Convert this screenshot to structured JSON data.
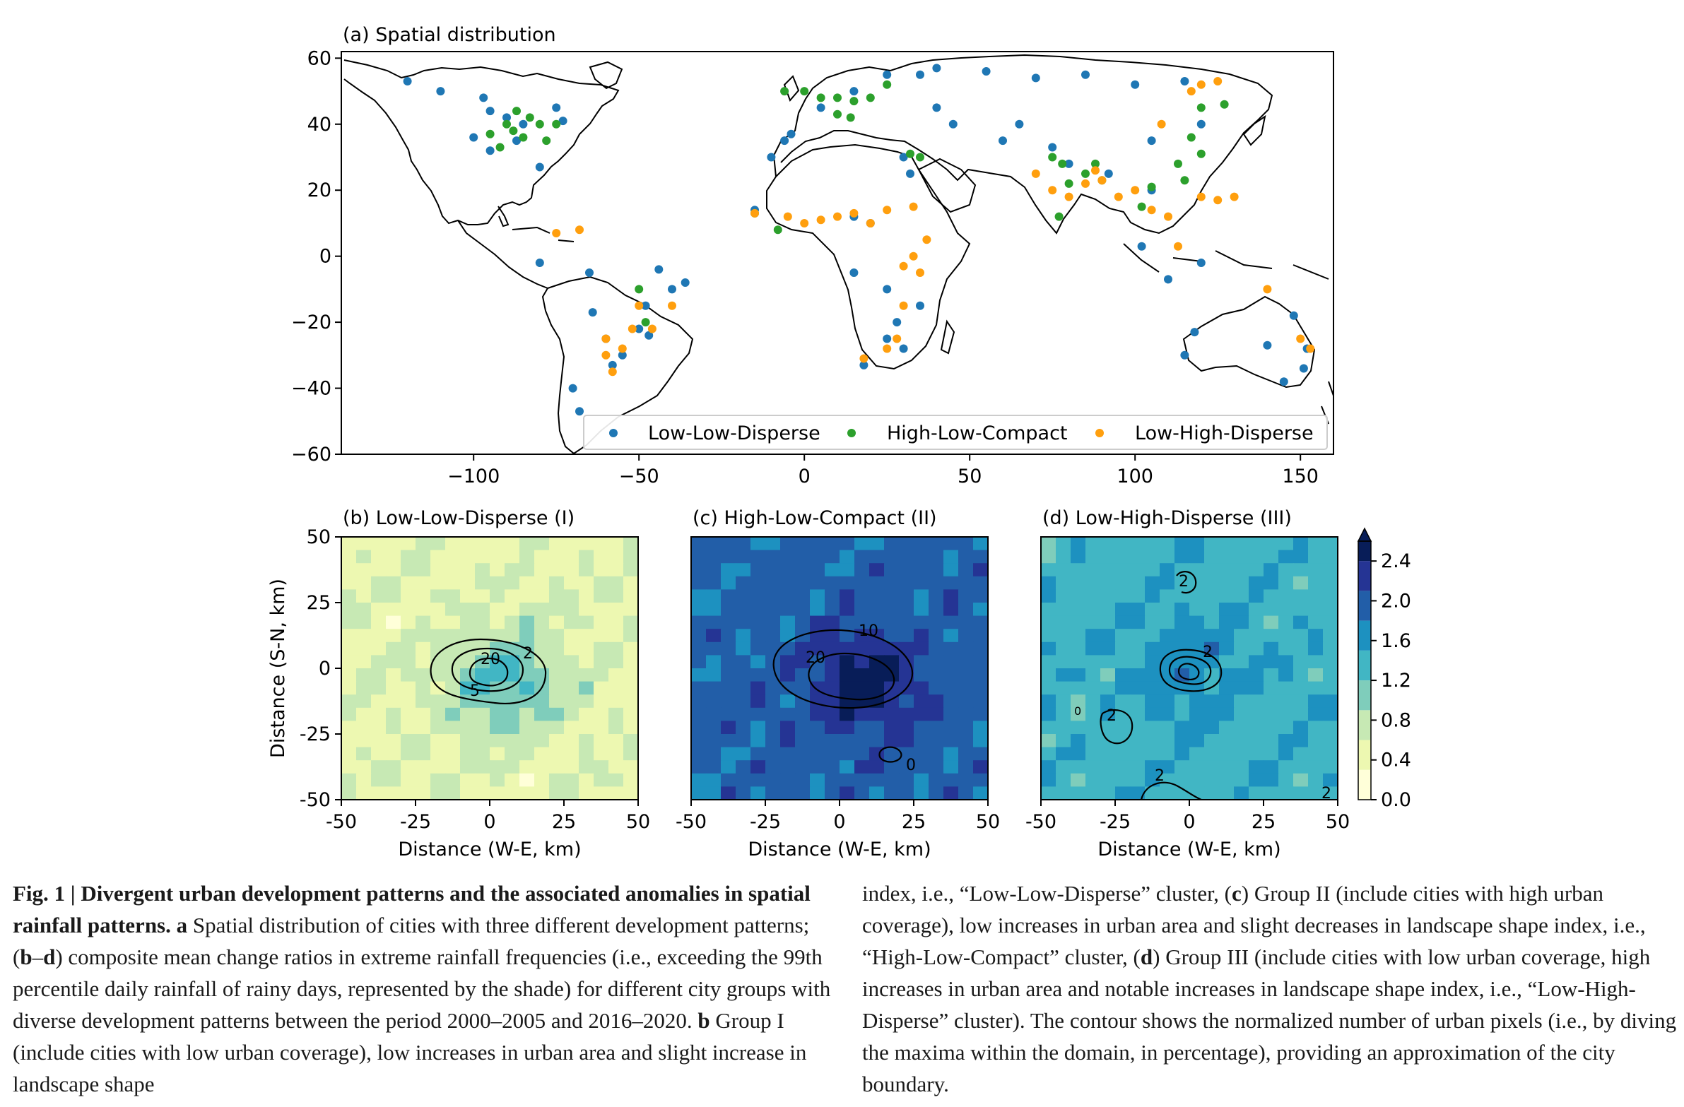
{
  "panels": {
    "a": {
      "title": "(a) Spatial distribution"
    },
    "b": {
      "title": "(b) Low-Low-Disperse (I)"
    },
    "c": {
      "title": "(c) High-Low-Compact (II)"
    },
    "d": {
      "title": "(d) Low-High-Disperse (III)"
    }
  },
  "map_axes": {
    "xticks": [
      "−100",
      "−50",
      "0",
      "50",
      "100",
      "150"
    ],
    "yticks": [
      "60",
      "40",
      "20",
      "0",
      "−20",
      "−40",
      "−60"
    ]
  },
  "legend": [
    {
      "label": "Low-Low-Disperse",
      "color": "#1f77b4"
    },
    {
      "label": "High-Low-Compact",
      "color": "#2ca02c"
    },
    {
      "label": "Low-High-Disperse",
      "color": "#ff9f0e"
    }
  ],
  "small_axes": {
    "xticks": [
      "-50",
      "-25",
      "0",
      "25",
      "50"
    ],
    "yticks": [
      "50",
      "25",
      "0",
      "-25",
      "-50"
    ],
    "xlabel": "Distance (W-E, km)",
    "ylabel": "Distance (S-N, km)"
  },
  "colorbar": {
    "ticks": [
      "2.4",
      "2.0",
      "1.6",
      "1.2",
      "0.8",
      "0.4",
      "0.0"
    ],
    "colors": [
      "#ffffd9",
      "#edf8b1",
      "#c7e9b4",
      "#7fcdbb",
      "#41b6c4",
      "#1d91c0",
      "#225ea8",
      "#253494",
      "#081d58"
    ]
  },
  "contours": {
    "b": [
      "2",
      "20",
      "5"
    ],
    "c": [
      "10",
      "20",
      "0"
    ],
    "d": [
      "2",
      "2",
      "2",
      "2",
      "0",
      "2"
    ]
  },
  "chart_data": [
    {
      "type": "scatter",
      "title": "(a) Spatial distribution",
      "xlim": [
        -140,
        160
      ],
      "ylim": [
        -60,
        62
      ],
      "legend_position": "lower-right",
      "series": [
        {
          "name": "Low-Low-Disperse",
          "color": "#1f77b4",
          "points": [
            [
              -120,
              53
            ],
            [
              -110,
              50
            ],
            [
              -97,
              48
            ],
            [
              -95,
              44
            ],
            [
              -90,
              42
            ],
            [
              -85,
              40
            ],
            [
              -100,
              36
            ],
            [
              -95,
              32
            ],
            [
              -80,
              27
            ],
            [
              -75,
              45
            ],
            [
              -73,
              41
            ],
            [
              -87,
              35
            ],
            [
              -64,
              -17
            ],
            [
              -60,
              -25
            ],
            [
              -58,
              -33
            ],
            [
              -55,
              -30
            ],
            [
              -48,
              -15
            ],
            [
              -44,
              -4
            ],
            [
              -40,
              -10
            ],
            [
              -36,
              -8
            ],
            [
              -70,
              -40
            ],
            [
              -68,
              -47
            ],
            [
              -50,
              -22
            ],
            [
              -47,
              -24
            ],
            [
              -65,
              -5
            ],
            [
              -80,
              -2
            ],
            [
              -4,
              37
            ],
            [
              5,
              45
            ],
            [
              15,
              50
            ],
            [
              25,
              55
            ],
            [
              35,
              55
            ],
            [
              40,
              57
            ],
            [
              55,
              56
            ],
            [
              70,
              54
            ],
            [
              85,
              55
            ],
            [
              100,
              52
            ],
            [
              115,
              53
            ],
            [
              40,
              45
            ],
            [
              45,
              40
            ],
            [
              30,
              30
            ],
            [
              32,
              25
            ],
            [
              20,
              10
            ],
            [
              15,
              12
            ],
            [
              25,
              -10
            ],
            [
              28,
              -20
            ],
            [
              25,
              -25
            ],
            [
              30,
              -28
            ],
            [
              35,
              -15
            ],
            [
              15,
              -5
            ],
            [
              -10,
              30
            ],
            [
              -6,
              35
            ],
            [
              -15,
              14
            ],
            [
              18,
              -33
            ],
            [
              60,
              35
            ],
            [
              65,
              40
            ],
            [
              75,
              33
            ],
            [
              80,
              28
            ],
            [
              92,
              25
            ],
            [
              105,
              20
            ],
            [
              105,
              35
            ],
            [
              120,
              40
            ],
            [
              115,
              -30
            ],
            [
              118,
              -23
            ],
            [
              140,
              -27
            ],
            [
              145,
              -38
            ],
            [
              151,
              -34
            ],
            [
              152,
              -28
            ],
            [
              148,
              -18
            ],
            [
              120,
              -2
            ],
            [
              110,
              -7
            ],
            [
              102,
              3
            ]
          ]
        },
        {
          "name": "High-Low-Compact",
          "color": "#2ca02c",
          "points": [
            [
              -90,
              40
            ],
            [
              -88,
              38
            ],
            [
              -85,
              36
            ],
            [
              -80,
              40
            ],
            [
              -78,
              35
            ],
            [
              -83,
              42
            ],
            [
              -95,
              37
            ],
            [
              -87,
              44
            ],
            [
              -75,
              40
            ],
            [
              -92,
              33
            ],
            [
              -6,
              50
            ],
            [
              0,
              50
            ],
            [
              5,
              48
            ],
            [
              10,
              48
            ],
            [
              15,
              47
            ],
            [
              20,
              48
            ],
            [
              25,
              52
            ],
            [
              10,
              43
            ],
            [
              14,
              42
            ],
            [
              32,
              31
            ],
            [
              35,
              30
            ],
            [
              -15,
              13
            ],
            [
              -8,
              8
            ],
            [
              75,
              30
            ],
            [
              78,
              28
            ],
            [
              80,
              22
            ],
            [
              85,
              25
            ],
            [
              90,
              23
            ],
            [
              88,
              28
            ],
            [
              77,
              12
            ],
            [
              102,
              15
            ],
            [
              105,
              21
            ],
            [
              115,
              23
            ],
            [
              113,
              28
            ],
            [
              117,
              36
            ],
            [
              120,
              31
            ],
            [
              127,
              46
            ],
            [
              120,
              45
            ],
            [
              -48,
              -20
            ],
            [
              -50,
              -10
            ]
          ]
        },
        {
          "name": "Low-High-Disperse",
          "color": "#ff9f0e",
          "points": [
            [
              -75,
              7
            ],
            [
              -68,
              8
            ],
            [
              -60,
              -25
            ],
            [
              -55,
              -28
            ],
            [
              -52,
              -22
            ],
            [
              -60,
              -30
            ],
            [
              -58,
              -35
            ],
            [
              -50,
              -15
            ],
            [
              -40,
              -15
            ],
            [
              -46,
              -22
            ],
            [
              -15,
              13
            ],
            [
              -5,
              12
            ],
            [
              0,
              10
            ],
            [
              5,
              11
            ],
            [
              10,
              12
            ],
            [
              15,
              13
            ],
            [
              20,
              10
            ],
            [
              25,
              14
            ],
            [
              33,
              15
            ],
            [
              30,
              -3
            ],
            [
              35,
              -5
            ],
            [
              33,
              0
            ],
            [
              37,
              5
            ],
            [
              30,
              -15
            ],
            [
              28,
              -25
            ],
            [
              25,
              -28
            ],
            [
              18,
              -31
            ],
            [
              70,
              25
            ],
            [
              75,
              20
            ],
            [
              80,
              18
            ],
            [
              85,
              22
            ],
            [
              90,
              23
            ],
            [
              88,
              26
            ],
            [
              95,
              18
            ],
            [
              100,
              20
            ],
            [
              105,
              14
            ],
            [
              110,
              12
            ],
            [
              113,
              3
            ],
            [
              120,
              18
            ],
            [
              125,
              17
            ],
            [
              130,
              18
            ],
            [
              140,
              -10
            ],
            [
              150,
              -25
            ],
            [
              153,
              -28
            ],
            [
              117,
              50
            ],
            [
              120,
              52
            ],
            [
              125,
              53
            ],
            [
              108,
              40
            ]
          ]
        }
      ]
    },
    {
      "type": "heatmap",
      "title": "(b) Low-Low-Disperse (I)",
      "xlabel": "Distance (W-E, km)",
      "ylabel": "Distance (S-N, km)",
      "xlim": [
        -50,
        50
      ],
      "ylim": [
        -50,
        50
      ],
      "colorbar_range": [
        0.0,
        2.6
      ],
      "background_level": 0.55,
      "anomaly": {
        "x": 5,
        "y": -5,
        "peak": 1.25
      },
      "contour_levels": [
        2,
        5,
        20
      ]
    },
    {
      "type": "heatmap",
      "title": "(c) High-Low-Compact (II)",
      "xlabel": "Distance (W-E, km)",
      "xlim": [
        -50,
        50
      ],
      "ylim": [
        -50,
        50
      ],
      "colorbar_range": [
        0.0,
        2.6
      ],
      "background_level": 1.9,
      "anomaly": {
        "x": 8,
        "y": -6,
        "peak": 2.6
      },
      "contour_levels": [
        0,
        10,
        20
      ]
    },
    {
      "type": "heatmap",
      "title": "(d) Low-High-Disperse (III)",
      "xlabel": "Distance (W-E, km)",
      "xlim": [
        -50,
        50
      ],
      "ylim": [
        -50,
        50
      ],
      "colorbar_range": [
        0.0,
        2.6
      ],
      "background_level": 1.4,
      "anomaly": {
        "x": 0,
        "y": 0,
        "peak": 1.7
      },
      "contour_levels": [
        0,
        2
      ]
    }
  ],
  "caption": {
    "left": {
      "label": "Fig. 1 | ",
      "bold": "Divergent urban development patterns and the associated anomalies in spatial rainfall patterns.",
      "a_label": " a",
      "text1": " Spatial distribution of cities with three different development patterns; (",
      "bd": "b",
      "dash": "–",
      "d": "d",
      "text2": ") composite mean change ratios in extreme rainfall frequencies (i.e., exceeding the 99th percentile daily rainfall of rainy days, represented by the shade) for different city groups with diverse development patterns between the period 2000–2005 and 2016–2020. ",
      "b": "b",
      "text3": " Group I (include cities with low urban coverage), low increases in urban area and slight increase in landscape shape"
    },
    "right": {
      "text1": "index, i.e., “Low-Low-Disperse” cluster, (",
      "c": "c",
      "text2": ") Group II (include cities with high urban coverage), low increases in urban area and slight decreases in landscape shape index, i.e., “High-Low-Compact” cluster, (",
      "d": "d",
      "text3": ") Group III (include cities with low urban coverage, high increases in urban area and notable increases in landscape shape index, i.e., “Low-High-Disperse” cluster). The contour shows the normalized number of urban pixels (i.e., by diving the maxima within the domain, in percentage), providing an approximation of the city boundary."
    }
  }
}
